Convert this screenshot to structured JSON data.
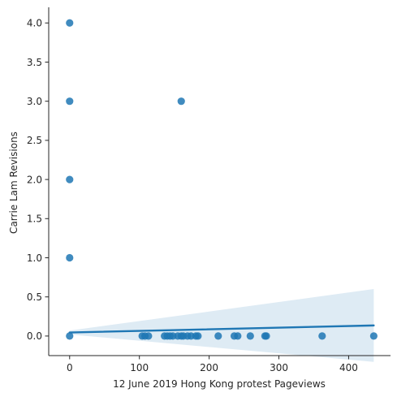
{
  "chart_data": {
    "type": "scatter",
    "title": "",
    "xlabel": "12 June 2019 Hong Kong protest Pageviews",
    "ylabel": "Carrie Lam Revisions",
    "xlim": [
      -30,
      460
    ],
    "ylim": [
      -0.25,
      4.2
    ],
    "xticks": [
      0,
      100,
      200,
      300,
      400
    ],
    "yticks": [
      0.0,
      0.5,
      1.0,
      1.5,
      2.0,
      2.5,
      3.0,
      3.5,
      4.0
    ],
    "xtick_labels": [
      "0",
      "100",
      "200",
      "300",
      "400"
    ],
    "ytick_labels": [
      "0.0",
      "0.5",
      "1.0",
      "1.5",
      "2.0",
      "2.5",
      "3.0",
      "3.5",
      "4.0"
    ],
    "grid": false,
    "point_color": "#1f77b4",
    "points": [
      {
        "x": 0,
        "y": 4
      },
      {
        "x": 0,
        "y": 3
      },
      {
        "x": 0,
        "y": 2
      },
      {
        "x": 0,
        "y": 1
      },
      {
        "x": 0,
        "y": 0
      },
      {
        "x": 160,
        "y": 3
      },
      {
        "x": 104,
        "y": 0
      },
      {
        "x": 108,
        "y": 0
      },
      {
        "x": 113,
        "y": 0
      },
      {
        "x": 136,
        "y": 0
      },
      {
        "x": 140,
        "y": 0
      },
      {
        "x": 144,
        "y": 0
      },
      {
        "x": 148,
        "y": 0
      },
      {
        "x": 155,
        "y": 0
      },
      {
        "x": 160,
        "y": 0
      },
      {
        "x": 163,
        "y": 0
      },
      {
        "x": 169,
        "y": 0
      },
      {
        "x": 174,
        "y": 0
      },
      {
        "x": 181,
        "y": 0
      },
      {
        "x": 184,
        "y": 0
      },
      {
        "x": 213,
        "y": 0
      },
      {
        "x": 236,
        "y": 0
      },
      {
        "x": 241,
        "y": 0
      },
      {
        "x": 259,
        "y": 0
      },
      {
        "x": 280,
        "y": 0
      },
      {
        "x": 282,
        "y": 0
      },
      {
        "x": 362,
        "y": 0
      },
      {
        "x": 436,
        "y": 0
      }
    ],
    "regression": {
      "x_start": 0,
      "x_end": 436,
      "y_start": 0.045,
      "y_end": 0.135,
      "ci_lower": [
        {
          "x": 0,
          "y": 0.02
        },
        {
          "x": 436,
          "y": -0.33
        }
      ],
      "ci_upper": [
        {
          "x": 0,
          "y": 0.07
        },
        {
          "x": 436,
          "y": 0.6
        }
      ]
    }
  }
}
